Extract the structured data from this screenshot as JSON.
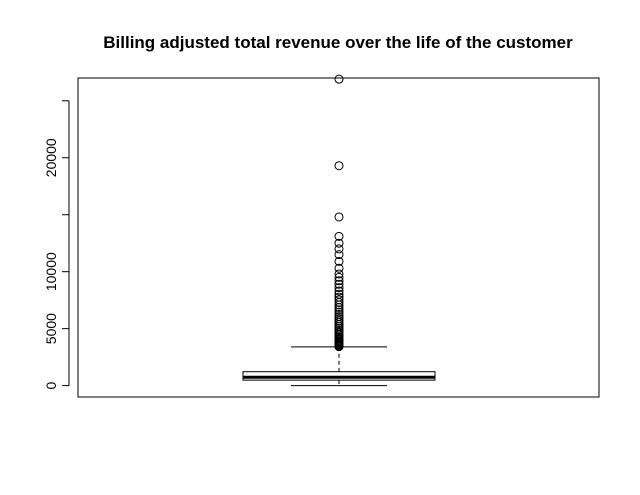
{
  "chart_data": {
    "type": "box",
    "title": "Billing adjusted total revenue over the life of the customer",
    "xlabel": "",
    "ylabel": "",
    "ylim": [
      -1000,
      27000
    ],
    "yticks": [
      0,
      5000,
      10000,
      20000
    ],
    "ytick_labels": [
      "0",
      "5000",
      "10000",
      "20000"
    ],
    "grid": false,
    "box": {
      "lower_whisker": 0,
      "q1": 480,
      "median": 730,
      "q3": 1220,
      "upper_whisker": 3400
    },
    "outliers": [
      3420,
      3480,
      3550,
      3620,
      3700,
      3780,
      3860,
      3950,
      4050,
      4150,
      4260,
      4380,
      4500,
      4630,
      4760,
      4900,
      5050,
      5200,
      5360,
      5530,
      5700,
      5880,
      6060,
      6250,
      6450,
      6650,
      6860,
      7080,
      7300,
      7530,
      7770,
      8020,
      8300,
      8600,
      8900,
      9200,
      9500,
      9800,
      10300,
      10900,
      11500,
      12000,
      12500,
      13100,
      14800,
      19300,
      26900
    ]
  }
}
